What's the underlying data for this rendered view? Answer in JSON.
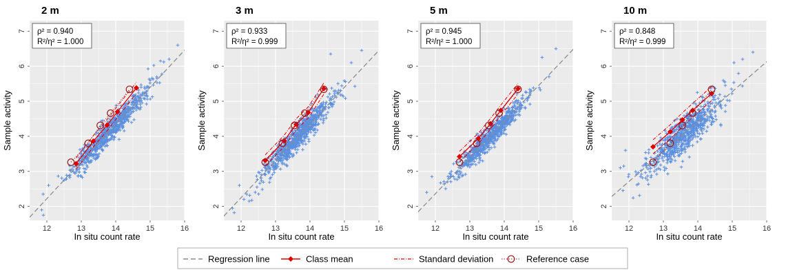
{
  "chart_data": [
    {
      "type": "scatter",
      "title": "2 m",
      "xlabel": "In situ count rate",
      "ylabel": "Sample activity",
      "xlim": [
        11.5,
        16
      ],
      "ylim": [
        1.6,
        7.3
      ],
      "xticks": [
        12,
        13,
        14,
        15,
        16
      ],
      "yticks": [
        2,
        3,
        4,
        5,
        6,
        7
      ],
      "stats": [
        "ρ² = 0.940",
        "R²/η² = 1.000"
      ],
      "regression_line": {
        "intercept": -10.5,
        "slope": 1.06
      },
      "class_means": [
        {
          "x": 12.85,
          "y": 3.22
        },
        {
          "x": 13.35,
          "y": 3.86
        },
        {
          "x": 13.75,
          "y": 4.32
        },
        {
          "x": 14.05,
          "y": 4.7
        },
        {
          "x": 14.6,
          "y": 5.38
        }
      ],
      "reference_cases": [
        {
          "x": 12.7,
          "y": 3.26
        },
        {
          "x": 13.2,
          "y": 3.8
        },
        {
          "x": 13.55,
          "y": 4.31
        },
        {
          "x": 13.85,
          "y": 4.66
        },
        {
          "x": 14.4,
          "y": 5.34
        }
      ],
      "sd_spread": 0.16,
      "scatter": {
        "n": 700,
        "x_center": 13.8,
        "x_sd": 0.55,
        "y_noise": 0.17,
        "seed": 11
      },
      "scatter_extra": [
        {
          "x": 11.9,
          "y": 1.75
        },
        {
          "x": 11.85,
          "y": 1.9
        },
        {
          "x": 12.05,
          "y": 2.6
        },
        {
          "x": 15.8,
          "y": 6.6
        },
        {
          "x": 15.55,
          "y": 6.2
        },
        {
          "x": 15.3,
          "y": 6.15
        }
      ]
    },
    {
      "type": "scatter",
      "title": "3 m",
      "xlabel": "In situ count rate",
      "ylabel": "Sample activity",
      "xlim": [
        11.5,
        16
      ],
      "ylim": [
        1.6,
        7.3
      ],
      "xticks": [
        12,
        13,
        14,
        15,
        16
      ],
      "yticks": [
        2,
        3,
        4,
        5,
        6,
        7
      ],
      "stats": [
        "ρ² = 0.933",
        "R²/η² = 0.999"
      ],
      "regression_line": {
        "intercept": -10.35,
        "slope": 1.05
      },
      "class_means": [
        {
          "x": 12.7,
          "y": 3.31
        },
        {
          "x": 13.25,
          "y": 3.87
        },
        {
          "x": 13.6,
          "y": 4.34
        },
        {
          "x": 13.95,
          "y": 4.68
        },
        {
          "x": 14.4,
          "y": 5.36
        }
      ],
      "reference_cases": [
        {
          "x": 12.7,
          "y": 3.26
        },
        {
          "x": 13.2,
          "y": 3.8
        },
        {
          "x": 13.55,
          "y": 4.31
        },
        {
          "x": 13.85,
          "y": 4.66
        },
        {
          "x": 14.4,
          "y": 5.34
        }
      ],
      "sd_spread": 0.16,
      "scatter": {
        "n": 700,
        "x_center": 13.6,
        "x_sd": 0.5,
        "y_noise": 0.18,
        "seed": 23
      },
      "scatter_extra": [
        {
          "x": 11.8,
          "y": 1.82
        },
        {
          "x": 11.75,
          "y": 1.95
        },
        {
          "x": 11.95,
          "y": 2.6
        },
        {
          "x": 15.5,
          "y": 6.45
        },
        {
          "x": 14.6,
          "y": 6.35
        },
        {
          "x": 15.2,
          "y": 6.1
        }
      ]
    },
    {
      "type": "scatter",
      "title": "5 m",
      "xlabel": "In situ count rate",
      "ylabel": "Sample activity",
      "xlim": [
        11.5,
        16
      ],
      "ylim": [
        1.6,
        7.3
      ],
      "xticks": [
        12,
        13,
        14,
        15,
        16
      ],
      "yticks": [
        2,
        3,
        4,
        5,
        6,
        7
      ],
      "stats": [
        "ρ² = 0.945",
        "R²/η² = 1.000"
      ],
      "regression_line": {
        "intercept": -10.0,
        "slope": 1.03
      },
      "class_means": [
        {
          "x": 12.7,
          "y": 3.42
        },
        {
          "x": 13.25,
          "y": 3.94
        },
        {
          "x": 13.6,
          "y": 4.36
        },
        {
          "x": 13.9,
          "y": 4.74
        },
        {
          "x": 14.4,
          "y": 5.36
        }
      ],
      "reference_cases": [
        {
          "x": 12.7,
          "y": 3.26
        },
        {
          "x": 13.2,
          "y": 3.8
        },
        {
          "x": 13.55,
          "y": 4.31
        },
        {
          "x": 13.85,
          "y": 4.66
        },
        {
          "x": 14.4,
          "y": 5.34
        }
      ],
      "sd_spread": 0.15,
      "scatter": {
        "n": 700,
        "x_center": 13.6,
        "x_sd": 0.5,
        "y_noise": 0.15,
        "seed": 37
      },
      "scatter_extra": [
        {
          "x": 11.75,
          "y": 2.4
        },
        {
          "x": 11.9,
          "y": 2.85
        },
        {
          "x": 15.5,
          "y": 6.5
        },
        {
          "x": 15.1,
          "y": 6.25
        },
        {
          "x": 15.3,
          "y": 5.7
        }
      ]
    },
    {
      "type": "scatter",
      "title": "10 m",
      "xlabel": "In situ count rate",
      "ylabel": "Sample activity",
      "xlim": [
        11.5,
        16
      ],
      "ylim": [
        1.6,
        7.3
      ],
      "xticks": [
        12,
        13,
        14,
        15,
        16
      ],
      "yticks": [
        2,
        3,
        4,
        5,
        6,
        7
      ],
      "stats": [
        "ρ² = 0.848",
        "R²/η² = 0.999"
      ],
      "regression_line": {
        "intercept": -7.55,
        "slope": 0.855
      },
      "class_means": [
        {
          "x": 12.7,
          "y": 3.7
        },
        {
          "x": 13.2,
          "y": 4.13
        },
        {
          "x": 13.55,
          "y": 4.47
        },
        {
          "x": 13.85,
          "y": 4.74
        },
        {
          "x": 14.4,
          "y": 5.22
        }
      ],
      "reference_cases": [
        {
          "x": 12.7,
          "y": 3.26
        },
        {
          "x": 13.2,
          "y": 3.8
        },
        {
          "x": 13.55,
          "y": 4.31
        },
        {
          "x": 13.85,
          "y": 4.66
        },
        {
          "x": 14.4,
          "y": 5.34
        }
      ],
      "sd_spread": 0.2,
      "scatter": {
        "n": 700,
        "x_center": 13.6,
        "x_sd": 0.52,
        "y_noise": 0.26,
        "seed": 53
      },
      "scatter_extra": [
        {
          "x": 11.75,
          "y": 3.1
        },
        {
          "x": 11.85,
          "y": 3.15
        },
        {
          "x": 11.9,
          "y": 3.6
        },
        {
          "x": 15.6,
          "y": 6.4
        },
        {
          "x": 15.3,
          "y": 6.2
        },
        {
          "x": 15.05,
          "y": 6.1
        }
      ]
    }
  ],
  "legend": {
    "items": [
      {
        "label": "Regression line",
        "kind": "dashed-line"
      },
      {
        "label": "Class mean",
        "kind": "line-diamond"
      },
      {
        "label": "Standard deviation",
        "kind": "dashdot-line"
      },
      {
        "label": "Reference case",
        "kind": "dotted-circle"
      }
    ]
  },
  "colors": {
    "panel_bg": "#ebebeb",
    "grid": "#ffffff",
    "points": "#5b8fe0",
    "regression": "#8c8c8c",
    "class_mean": "#e00000",
    "std_dev": "#e00000",
    "reference": "#9b1c1c"
  }
}
